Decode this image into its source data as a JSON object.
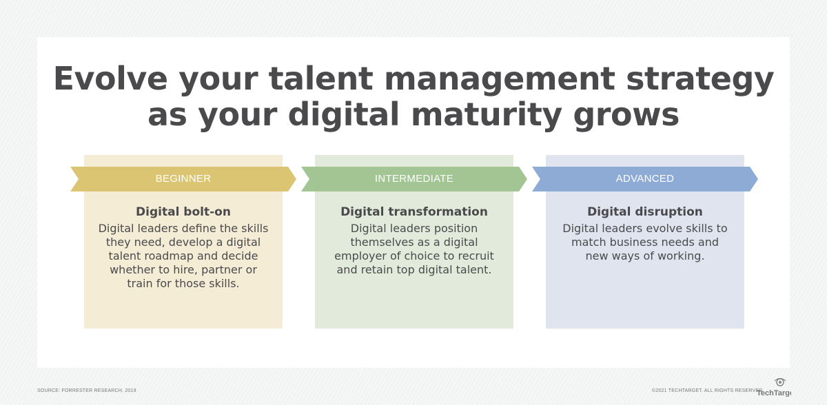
{
  "title_line1": "Evolve your talent management strategy",
  "title_line2": "as your digital maturity grows",
  "stages": [
    {
      "label": "BEGINNER",
      "heading": "Digital bolt-on",
      "description": "Digital leaders define the skills they need, develop a digital talent roadmap and decide whether to hire, partner or train for those skills.",
      "chevron_color": "#dcc572",
      "box_color": "#f4ecd5"
    },
    {
      "label": "INTERMEDIATE",
      "heading": "Digital transformation",
      "description": "Digital leaders position themselves as a digital employer of choice to recruit and retain top digital talent.",
      "chevron_color": "#a2c593",
      "box_color": "#e1eadb"
    },
    {
      "label": "ADVANCED",
      "heading": "Digital disruption",
      "description": "Digital leaders evolve skills to match business needs and new ways of working.",
      "chevron_color": "#8dabd4",
      "box_color": "#dfe4ef"
    }
  ],
  "footer": {
    "source": "SOURCE: FORRESTER RESEARCH, 2019",
    "copyright": "©2021 TECHTARGET. ALL RIGHTS RESERVED",
    "logo": "TechTarget"
  }
}
